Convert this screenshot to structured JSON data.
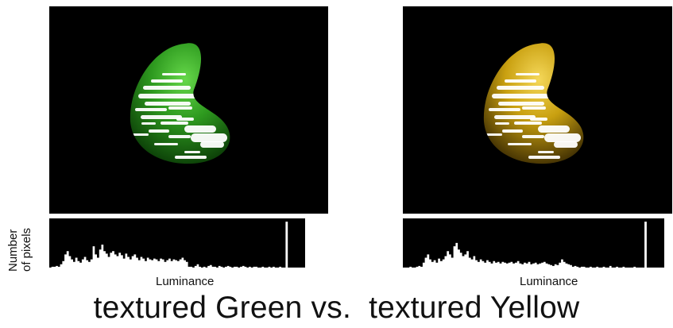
{
  "panels": [
    {
      "id": "green",
      "blob_color": "#2e9a1f",
      "blob_dark": "#0a3a06",
      "blob_light": "#66d84a",
      "hist_x_label": "Luminance",
      "hist_values": [
        2,
        3,
        3,
        4,
        3,
        6,
        10,
        18,
        22,
        16,
        12,
        9,
        14,
        10,
        8,
        12,
        15,
        11,
        9,
        12,
        28,
        18,
        14,
        24,
        30,
        22,
        19,
        15,
        20,
        22,
        18,
        16,
        20,
        17,
        13,
        19,
        15,
        12,
        16,
        18,
        14,
        11,
        15,
        13,
        10,
        14,
        12,
        11,
        13,
        12,
        10,
        13,
        12,
        9,
        11,
        13,
        10,
        12,
        11,
        10,
        12,
        14,
        11,
        9,
        3,
        3,
        2,
        4,
        6,
        3,
        2,
        3,
        2,
        4,
        5,
        3,
        3,
        2,
        4,
        3,
        2,
        3,
        4,
        3,
        2,
        3,
        3,
        2,
        3,
        4,
        3,
        2,
        3,
        2,
        3,
        3,
        2,
        2,
        3,
        2,
        2,
        3,
        2,
        3,
        2,
        2,
        3,
        2,
        2,
        58,
        2,
        2,
        2,
        2,
        2,
        2,
        2,
        2
      ]
    },
    {
      "id": "yellow",
      "blob_color": "#c9a010",
      "blob_dark": "#3a2a02",
      "blob_light": "#f5d85a",
      "hist_x_label": "Luminance",
      "hist_values": [
        2,
        2,
        2,
        3,
        2,
        2,
        3,
        4,
        3,
        8,
        14,
        18,
        12,
        9,
        11,
        8,
        13,
        10,
        12,
        16,
        22,
        18,
        14,
        28,
        32,
        24,
        20,
        16,
        18,
        22,
        14,
        12,
        16,
        11,
        9,
        12,
        10,
        8,
        11,
        9,
        7,
        10,
        8,
        9,
        7,
        9,
        8,
        7,
        8,
        9,
        7,
        8,
        10,
        7,
        6,
        8,
        7,
        9,
        6,
        7,
        8,
        6,
        7,
        8,
        9,
        7,
        6,
        5,
        4,
        6,
        5,
        8,
        12,
        9,
        7,
        6,
        5,
        3,
        4,
        3,
        2,
        3,
        3,
        2,
        2,
        3,
        2,
        2,
        3,
        2,
        2,
        3,
        2,
        2,
        4,
        2,
        2,
        3,
        2,
        2,
        3,
        2,
        2,
        2,
        2,
        3,
        2,
        2,
        2,
        2,
        58,
        2,
        2,
        2,
        2,
        2,
        2,
        2,
        2
      ]
    }
  ],
  "y_label_line1": "Number",
  "y_label_line2": "of pixels",
  "caption": "textured Green vs.  textured Yellow"
}
